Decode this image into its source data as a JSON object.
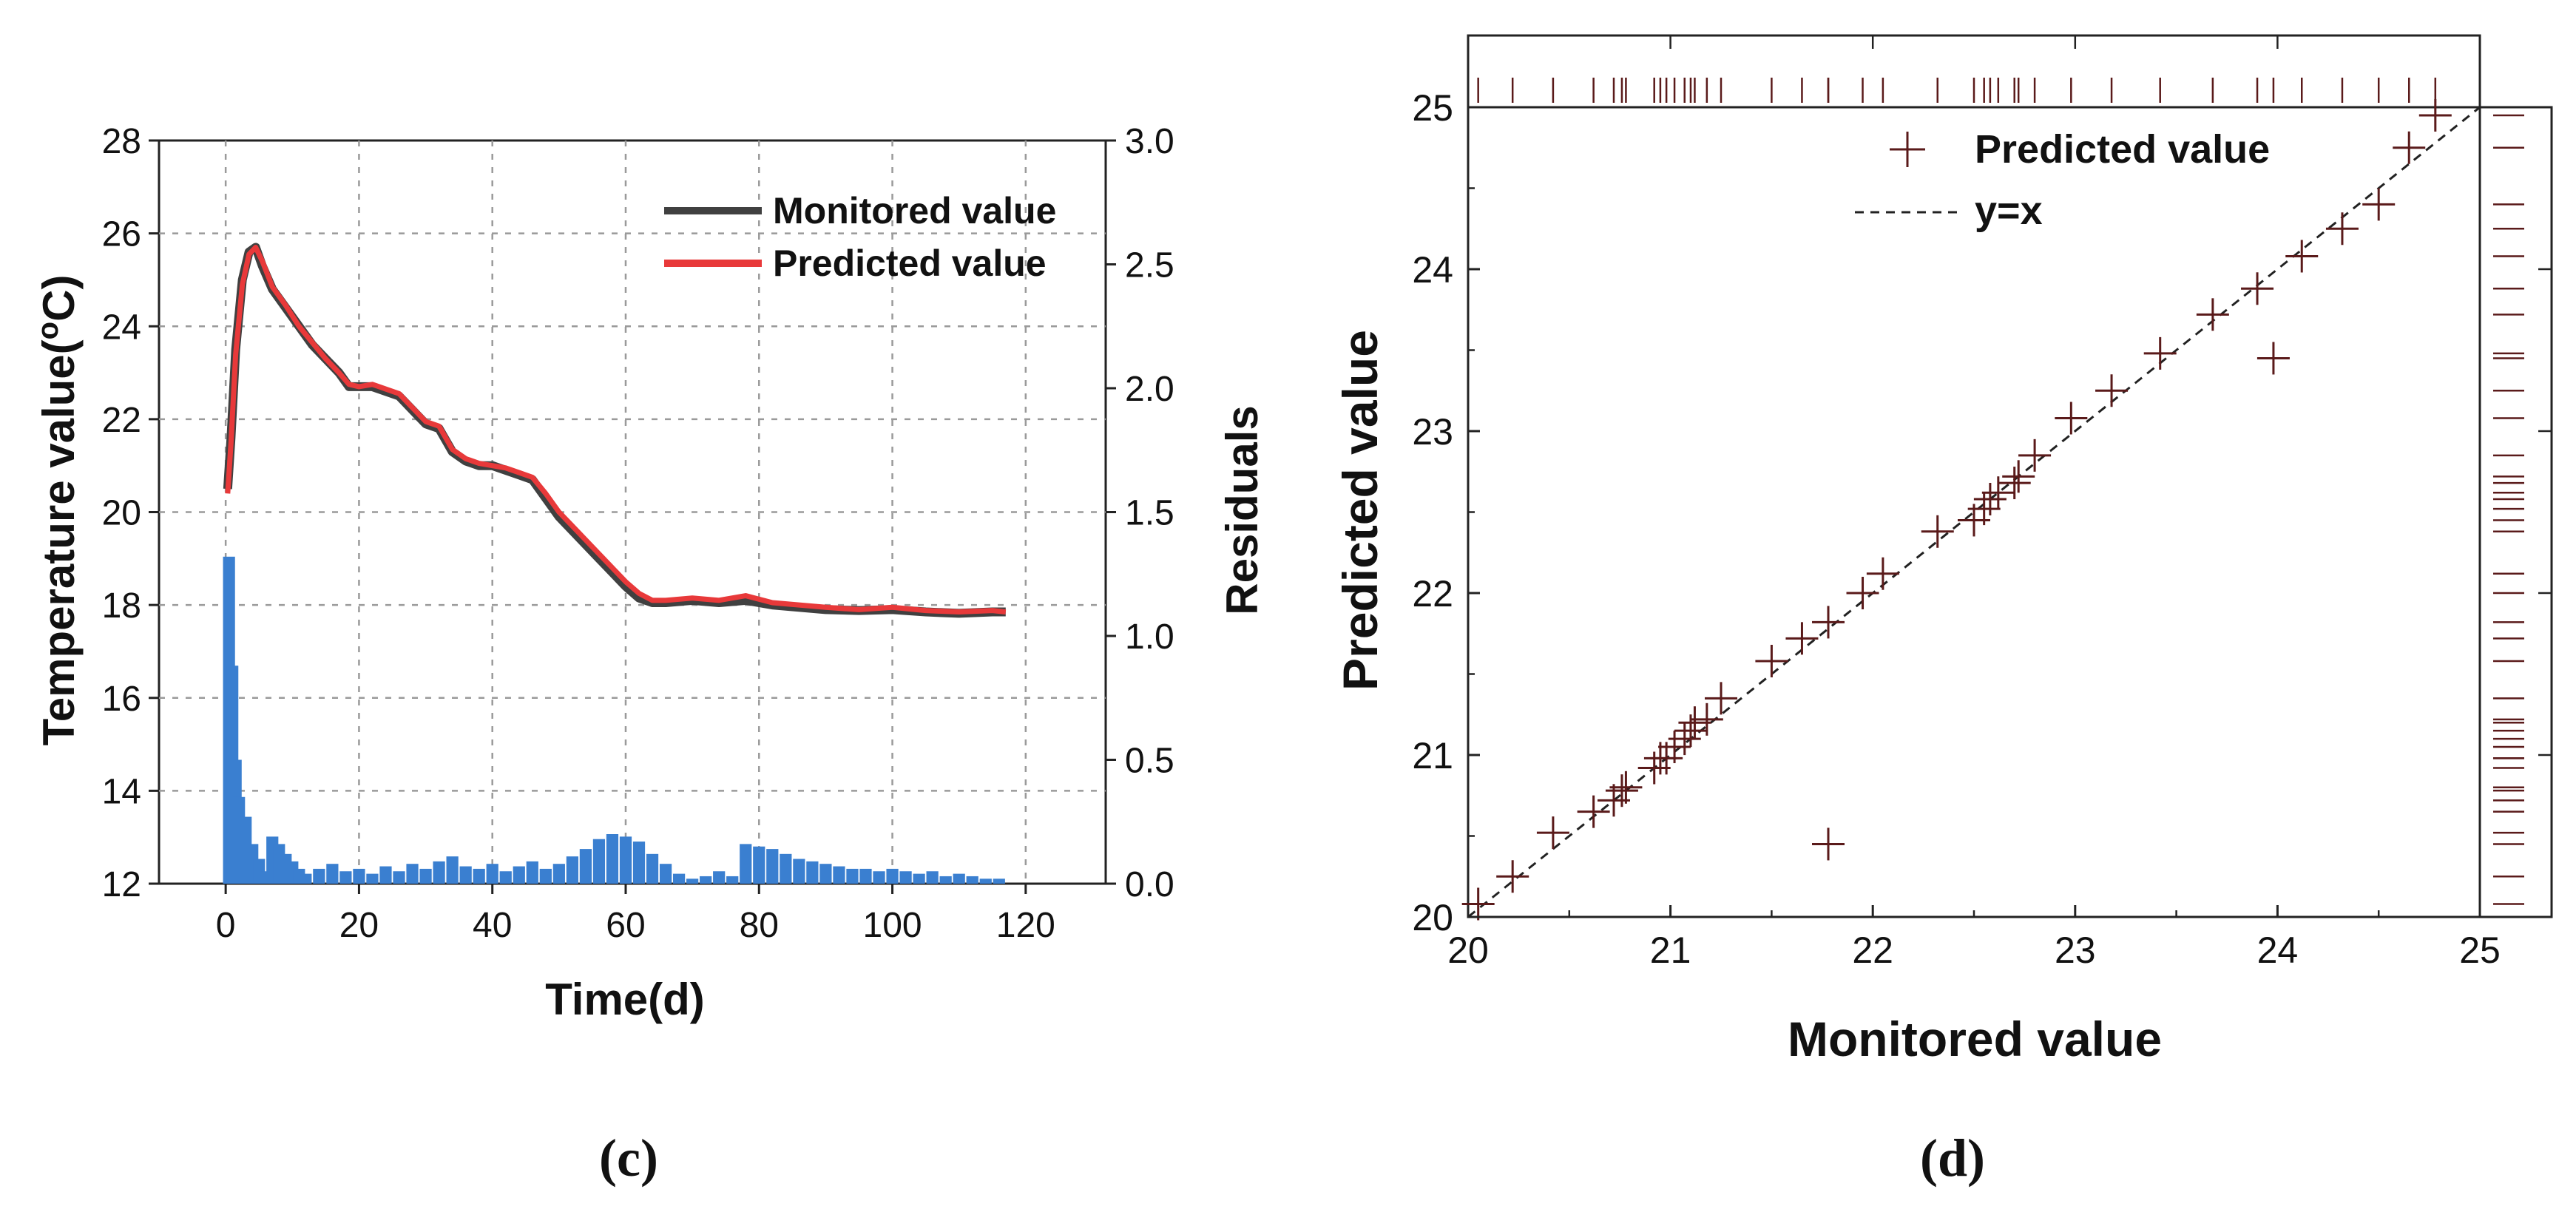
{
  "chart_data": [
    {
      "panel": "(c)",
      "type": "line",
      "xlabel": "Time(d)",
      "ylabel": "Temperature value(",
      "ylabel_sup": "o",
      "ylabel_tail": "C)",
      "y2label": "Residuals",
      "xlim": [
        -10,
        132
      ],
      "ylim": [
        12,
        28
      ],
      "y2lim": [
        0,
        3.0
      ],
      "xticks": [
        0,
        20,
        40,
        60,
        80,
        100,
        120
      ],
      "xtick_labels": [
        "0",
        "20",
        "40",
        "60",
        "80",
        "100",
        "120"
      ],
      "yticks": [
        12,
        14,
        16,
        18,
        20,
        22,
        24,
        26,
        28
      ],
      "ytick_labels": [
        "12",
        "14",
        "16",
        "18",
        "20",
        "22",
        "24",
        "26",
        "28"
      ],
      "y2ticks": [
        0,
        0.5,
        1.0,
        1.5,
        2.0,
        2.5,
        3.0
      ],
      "y2tick_labels": [
        "0.0",
        "0.5",
        "1.0",
        "1.5",
        "2.0",
        "2.5",
        "3.0"
      ],
      "grid": true,
      "legend_position": "top-right",
      "series": [
        {
          "name": "Monitored value",
          "color": "#404040",
          "x": [
            0.3,
            0.8,
            1.5,
            2.5,
            3.5,
            4.5,
            5.5,
            7,
            9,
            11,
            13,
            15,
            17,
            18.5,
            20,
            22,
            24,
            26,
            28,
            30,
            32,
            34,
            36,
            38,
            40,
            42,
            44,
            46,
            48,
            50,
            52,
            54,
            56,
            58,
            60,
            62,
            64,
            66,
            70,
            74,
            78,
            82,
            86,
            90,
            95,
            100,
            105,
            110,
            115,
            117
          ],
          "y": [
            20.5,
            21.6,
            23.5,
            25.0,
            25.6,
            25.7,
            25.3,
            24.8,
            24.4,
            24.0,
            23.6,
            23.3,
            23.0,
            22.7,
            22.7,
            22.7,
            22.6,
            22.5,
            22.2,
            21.9,
            21.8,
            21.3,
            21.1,
            21.0,
            21.0,
            20.9,
            20.8,
            20.7,
            20.3,
            19.9,
            19.6,
            19.3,
            19.0,
            18.7,
            18.4,
            18.15,
            18.05,
            18.05,
            18.1,
            18.05,
            18.1,
            18.0,
            17.95,
            17.9,
            17.88,
            17.9,
            17.85,
            17.82,
            17.85,
            17.85
          ]
        },
        {
          "name": "Predicted value",
          "color": "#e8393a",
          "x": [
            0.3,
            0.8,
            1.5,
            2.5,
            3.5,
            4.5,
            5.5,
            7,
            9,
            11,
            13,
            15,
            17,
            18.5,
            20,
            22,
            24,
            26,
            28,
            30,
            32,
            34,
            36,
            38,
            40,
            42,
            44,
            46,
            48,
            50,
            52,
            54,
            56,
            58,
            60,
            62,
            64,
            66,
            70,
            74,
            78,
            82,
            86,
            90,
            95,
            100,
            105,
            110,
            115,
            117
          ],
          "y": [
            20.4,
            21.5,
            23.4,
            24.9,
            25.55,
            25.7,
            25.4,
            24.85,
            24.45,
            24.0,
            23.65,
            23.3,
            23.0,
            22.75,
            22.7,
            22.75,
            22.65,
            22.55,
            22.25,
            21.95,
            21.85,
            21.35,
            21.15,
            21.05,
            21.0,
            20.95,
            20.85,
            20.75,
            20.4,
            20.0,
            19.7,
            19.4,
            19.1,
            18.8,
            18.5,
            18.25,
            18.1,
            18.1,
            18.15,
            18.1,
            18.2,
            18.05,
            18.0,
            17.95,
            17.9,
            17.95,
            17.88,
            17.85,
            17.88,
            17.85
          ]
        }
      ],
      "residuals": {
        "name": "Residuals",
        "color": "#3a7fd0",
        "x": [
          0.5,
          1,
          1.5,
          2,
          3,
          4,
          5,
          6,
          7,
          8,
          9,
          10,
          11,
          12,
          14,
          16,
          18,
          20,
          22,
          24,
          26,
          28,
          30,
          32,
          34,
          36,
          38,
          40,
          42,
          44,
          46,
          48,
          50,
          52,
          54,
          56,
          58,
          60,
          62,
          64,
          66,
          68,
          70,
          72,
          74,
          76,
          78,
          80,
          82,
          84,
          86,
          88,
          90,
          92,
          94,
          96,
          98,
          100,
          102,
          104,
          106,
          108,
          110,
          112,
          114,
          116
        ],
        "values": [
          1.32,
          0.88,
          0.5,
          0.35,
          0.27,
          0.16,
          0.1,
          0.05,
          0.19,
          0.16,
          0.12,
          0.09,
          0.06,
          0.04,
          0.06,
          0.08,
          0.05,
          0.06,
          0.04,
          0.07,
          0.05,
          0.08,
          0.06,
          0.09,
          0.11,
          0.07,
          0.06,
          0.08,
          0.05,
          0.07,
          0.09,
          0.06,
          0.08,
          0.11,
          0.14,
          0.18,
          0.2,
          0.19,
          0.17,
          0.12,
          0.08,
          0.04,
          0.02,
          0.03,
          0.05,
          0.03,
          0.16,
          0.15,
          0.14,
          0.12,
          0.1,
          0.09,
          0.08,
          0.07,
          0.06,
          0.06,
          0.05,
          0.06,
          0.05,
          0.04,
          0.05,
          0.03,
          0.04,
          0.03,
          0.02,
          0.02
        ]
      }
    },
    {
      "panel": "(d)",
      "type": "scatter",
      "xlabel": "Monitored value",
      "ylabel": "Predicted value",
      "xlim": [
        20,
        25
      ],
      "ylim": [
        20,
        25
      ],
      "xticks": [
        20,
        21,
        22,
        23,
        24,
        25
      ],
      "xtick_labels": [
        "20",
        "21",
        "22",
        "23",
        "24",
        "25"
      ],
      "yticks": [
        20,
        21,
        22,
        23,
        24,
        25
      ],
      "ytick_labels": [
        "20",
        "21",
        "22",
        "23",
        "24",
        "25"
      ],
      "legend_position": "top",
      "series": [
        {
          "name": "Predicted value",
          "color": "#5a1a1a",
          "x": [
            20.05,
            20.22,
            20.42,
            20.62,
            20.72,
            20.76,
            20.78,
            20.92,
            20.95,
            20.98,
            21.02,
            21.07,
            21.1,
            21.12,
            21.18,
            21.25,
            21.5,
            21.65,
            21.78,
            21.78,
            21.95,
            22.05,
            22.32,
            22.5,
            22.55,
            22.58,
            22.62,
            22.7,
            22.72,
            22.8,
            22.98,
            23.18,
            23.42,
            23.68,
            23.9,
            23.98,
            24.12,
            24.32,
            24.5,
            24.65,
            24.78
          ],
          "y": [
            20.08,
            20.25,
            20.52,
            20.65,
            20.72,
            20.78,
            20.8,
            20.92,
            20.98,
            20.98,
            21.05,
            21.1,
            21.15,
            21.2,
            21.22,
            21.35,
            21.58,
            21.72,
            21.82,
            20.45,
            22.0,
            22.12,
            22.38,
            22.45,
            22.52,
            22.58,
            22.62,
            22.68,
            22.72,
            22.85,
            23.08,
            23.25,
            23.48,
            23.72,
            23.88,
            23.45,
            24.08,
            24.25,
            24.4,
            24.75,
            24.95
          ]
        },
        {
          "name": "y=x",
          "color": "#222222",
          "x": [
            20,
            25
          ],
          "y": [
            20,
            25
          ]
        }
      ],
      "rug_color": "#5a1a1a"
    }
  ]
}
